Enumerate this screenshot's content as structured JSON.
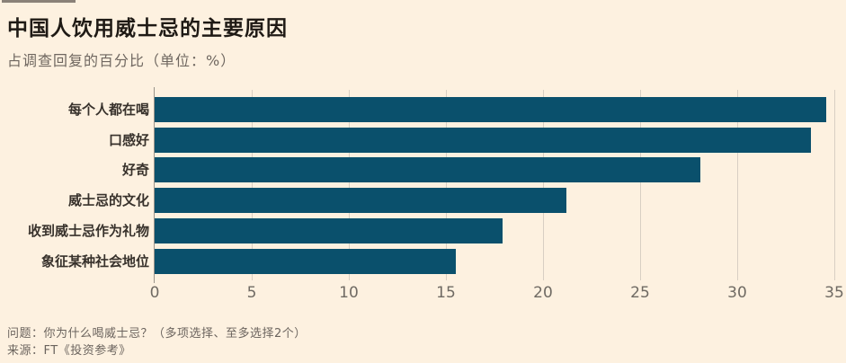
{
  "header": {
    "title": "中国人饮用威士忌的主要原因",
    "subtitle": "占调查回复的百分比（单位：%）"
  },
  "footer": {
    "question": "问题：你为什么喝威士忌？（多项选择、至多选择2个）",
    "source": "来源：FT《投资参考》"
  },
  "colors": {
    "background": "#fdf1e0",
    "bar": "#0a506c",
    "title_text": "#1f1a15",
    "muted_text": "#6f6760",
    "gridline": "#d8cfc3",
    "axis_line": "#9a938a",
    "top_rule": "#8a8178"
  },
  "chart_data": {
    "type": "bar",
    "orientation": "horizontal",
    "title": "中国人饮用威士忌的主要原因",
    "subtitle": "占调查回复的百分比（单位：%）",
    "categories": [
      "每个人都在喝",
      "口感好",
      "好奇",
      "威士忌的文化",
      "收到威士忌作为礼物",
      "象征某种社会地位"
    ],
    "values": [
      34.6,
      33.8,
      28.1,
      21.2,
      17.9,
      15.5
    ],
    "xlabel": "",
    "ylabel": "",
    "xlim": [
      0,
      35
    ],
    "xticks": [
      0,
      5,
      10,
      15,
      20,
      25,
      30,
      35
    ],
    "grid": true,
    "legend": false,
    "footnote": "问题：你为什么喝威士忌？（多项选择、至多选择2个）",
    "source": "来源：FT《投资参考》"
  }
}
